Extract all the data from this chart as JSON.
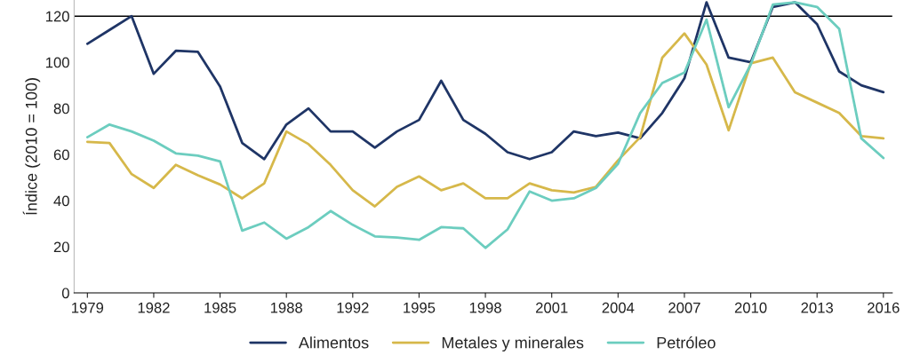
{
  "chart_data": {
    "type": "line",
    "ylabel": "Índice (2010 = 100)",
    "categories": [
      "1979",
      null,
      null,
      "1982",
      null,
      null,
      "1985",
      null,
      null,
      "1988",
      null,
      null,
      "1992",
      null,
      null,
      "1995",
      null,
      null,
      "1998",
      null,
      null,
      "2001",
      null,
      null,
      "2004",
      null,
      null,
      "2007",
      null,
      null,
      "2010",
      null,
      null,
      "2013",
      null,
      null,
      "2016"
    ],
    "series": [
      {
        "name": "Alimentos",
        "color": "#1f3566",
        "values": [
          108,
          114,
          120,
          95,
          105,
          104.5,
          89.5,
          65,
          58,
          73,
          80,
          70,
          70,
          63,
          70,
          75,
          92,
          75,
          69,
          61,
          58,
          61,
          70,
          68,
          69.5,
          67,
          78,
          93,
          126,
          102,
          100,
          124,
          126,
          116.5,
          96,
          90,
          87
        ]
      },
      {
        "name": "Metales y minerales",
        "color": "#d6b84a",
        "values": [
          65.5,
          65,
          51.5,
          45.5,
          55.5,
          51,
          47,
          41,
          47.5,
          70,
          64.5,
          55.5,
          44.5,
          37.5,
          46,
          50.5,
          44.5,
          47.5,
          41,
          41,
          47.5,
          44.5,
          43.5,
          46,
          57.5,
          67.5,
          102,
          112.5,
          99,
          70.5,
          99.5,
          102,
          87,
          82.5,
          78,
          68,
          67
        ]
      },
      {
        "name": "Petróleo",
        "color": "#6ccdbf",
        "values": [
          67.5,
          73,
          70,
          66,
          60.5,
          59.5,
          57,
          27,
          30.5,
          23.5,
          28.5,
          35.5,
          29.5,
          24.5,
          24,
          23,
          28.5,
          28,
          19.5,
          27.5,
          44,
          40,
          41,
          45.5,
          56,
          78,
          91,
          95.5,
          118.5,
          80.5,
          99,
          125,
          126,
          124,
          114.5,
          67,
          58.5
        ]
      }
    ],
    "ylim": [
      0,
      127
    ],
    "yticks": [
      0,
      20,
      40,
      60,
      80,
      100,
      120
    ],
    "ref_lines": [
      {
        "axis": "y",
        "value": 120,
        "color": "#000000"
      }
    ],
    "grid": false,
    "legend": "bottom",
    "marker": "none",
    "line_style": "solid"
  }
}
